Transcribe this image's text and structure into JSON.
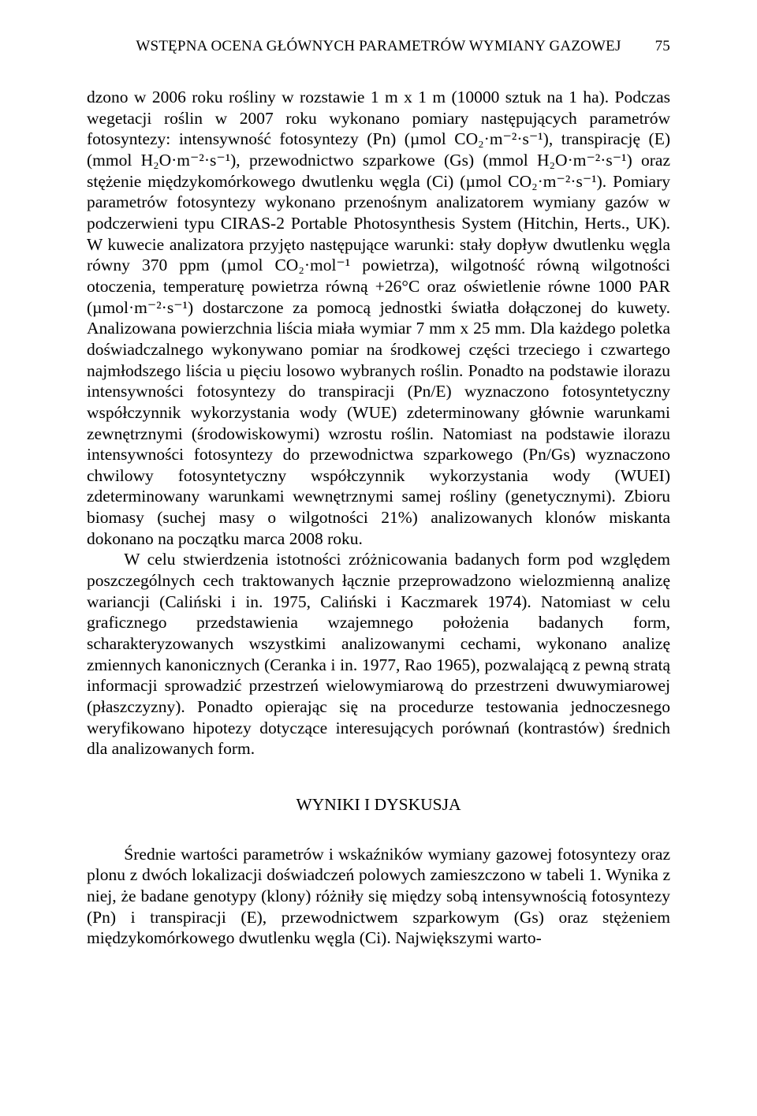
{
  "header": {
    "running_title": "WSTĘPNA OCENA GŁÓWNYCH PARAMETRÓW WYMIANY GAZOWEJ",
    "page_number": "75"
  },
  "paragraphs": {
    "p1": "dzono w 2006 roku rośliny w rozstawie 1 m x 1 m (10000 sztuk na 1 ha). Podczas wegetacji roślin w 2007 roku wykonano pomiary następujących parametrów fotosyntezy: intensywność fotosyntezy (Pn) (µmol CO₂·m⁻²·s⁻¹), transpirację (E) (mmol H₂O·m⁻²·s⁻¹), przewodnictwo szparkowe (Gs) (mmol H₂O·m⁻²·s⁻¹) oraz stężenie międzykomórkowego dwutlenku węgla (Ci) (µmol CO₂·m⁻²·s⁻¹). Pomiary parametrów fotosyntezy wykonano przenośnym analizatorem wymiany gazów w podczerwieni typu CIRAS-2 Portable Photosynthesis System (Hitchin, Herts., UK). W kuwecie analizatora przyjęto następujące warunki: stały dopływ dwutlenku węgla równy 370 ppm (µmol CO₂·mol⁻¹ powietrza), wilgotność równą wilgotności otoczenia, temperaturę powietrza równą +26°C oraz oświetlenie równe 1000 PAR (µmol·m⁻²·s⁻¹) dostarczone za pomocą jednostki światła dołączonej do kuwety. Analizowana powierzchnia liścia miała wymiar 7 mm x 25 mm. Dla każdego poletka doświadczalnego wykonywano pomiar na środkowej części trzeciego i czwartego najmłodszego liścia u pięciu losowo wybranych roślin. Ponadto na podstawie ilorazu intensywności fotosyntezy do transpiracji (Pn/E) wyznaczono fotosyntetyczny współczynnik wykorzystania wody (WUE) zdeterminowany głównie warunkami zewnętrznymi (środowiskowymi) wzrostu roślin. Natomiast na podstawie ilorazu intensywności fotosyntezy do przewodnictwa szparkowego (Pn/Gs) wyznaczono chwilowy fotosyntetyczny współczynnik wykorzystania wody (WUEI) zdeterminowany warunkami wewnętrznymi samej rośliny (genetycznymi). Zbioru biomasy (suchej masy o wilgotności 21%) analizowanych klonów miskanta dokonano na początku marca 2008 roku.",
    "p2": "W celu stwierdzenia istotności zróżnicowania badanych form pod względem poszczególnych cech traktowanych łącznie przeprowadzono wielozmienną analizę wariancji (Caliński i in. 1975, Caliński i Kaczmarek 1974). Natomiast w celu graficznego przedstawienia wzajemnego położenia badanych form, scharakteryzowanych wszystkimi analizowanymi cechami, wykonano analizę zmiennych kanonicznych (Ceranka i in. 1977, Rao 1965), pozwalającą z pewną stratą informacji sprowadzić przestrzeń wielowymiarową do przestrzeni dwuwymiarowej (płaszczyzny). Ponadto opierając się na procedurze testowania jednoczesnego weryfikowano hipotezy dotyczące interesujących porównań (kontrastów) średnich dla analizowanych form.",
    "section_head": "WYNIKI I DYSKUSJA",
    "p3": "Średnie wartości parametrów i wskaźników wymiany gazowej fotosyntezy oraz plonu z dwóch lokalizacji doświadczeń polowych zamieszczono w tabeli 1. Wynika z niej, że badane genotypy (klony) różniły się między sobą intensywnością fotosyntezy (Pn) i transpiracji (E), przewodnictwem szparkowym (Gs) oraz stężeniem międzykomórkowego dwutlenku węgla (Ci). Największymi warto-"
  }
}
